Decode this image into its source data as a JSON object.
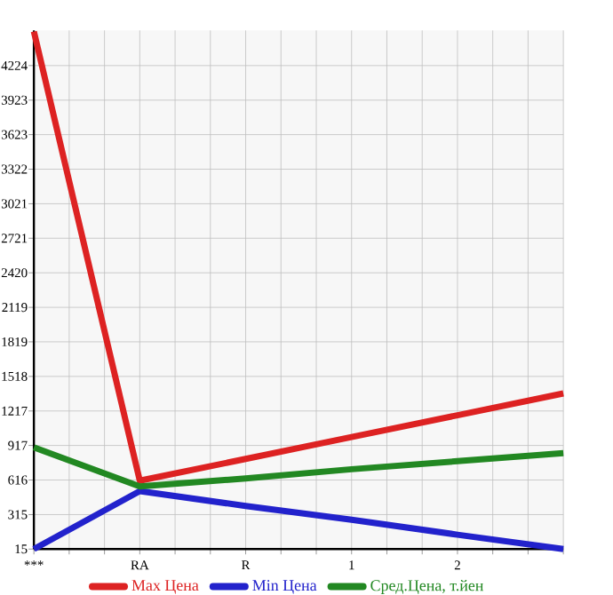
{
  "chart_data": {
    "type": "line",
    "categories": [
      "***",
      "RA",
      "R",
      "1",
      "2",
      null
    ],
    "series": [
      {
        "name": "Max Цена",
        "color": "#dd2222",
        "values": [
          4520,
          610,
          800,
          990,
          1180,
          1370
        ]
      },
      {
        "name": "Min Цена",
        "color": "#2222cc",
        "values": [
          15,
          520,
          390,
          270,
          140,
          15
        ]
      },
      {
        "name": "Сред.Цена, т.йен",
        "color": "#228822",
        "values": [
          900,
          560,
          630,
          710,
          780,
          850
        ]
      }
    ],
    "ylim": [
      15,
      4530
    ],
    "yticks": [
      15,
      315,
      616,
      917,
      1217,
      1518,
      1819,
      2119,
      2420,
      2721,
      3021,
      3322,
      3623,
      3923,
      4224
    ],
    "grid": true,
    "legend": "bottom",
    "marker": "none",
    "line_style": "solid"
  }
}
